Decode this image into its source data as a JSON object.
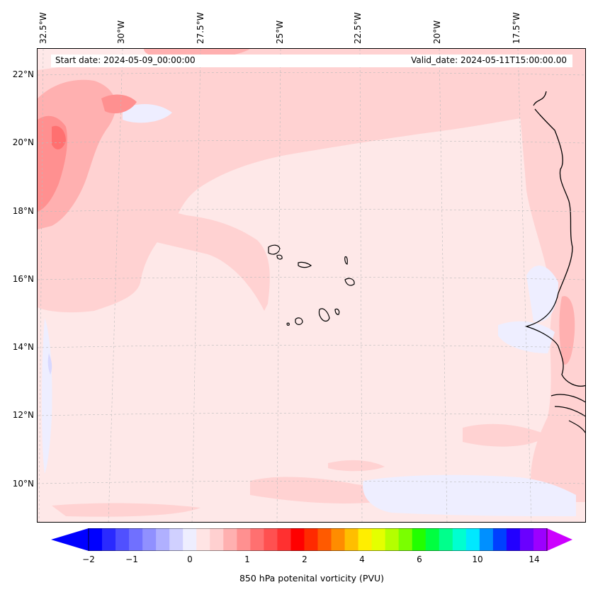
{
  "map": {
    "start_date_text": "Start date: 2024-05-09_00:00:00",
    "valid_date_text": "Valid_date: 2024-05-11T15:00:00.00",
    "longitude_labels": [
      "32.5°W",
      "30°W",
      "27.5°W",
      "25°W",
      "22.5°W",
      "20°W",
      "17.5°W"
    ],
    "latitude_labels": [
      "22°N",
      "20°N",
      "18°N",
      "16°N",
      "14°N",
      "12°N",
      "10°N"
    ],
    "background_color": "#fee8e8",
    "coastline_color": "#000000"
  },
  "colorbar": {
    "label": "850 hPa potenital vorticity (PVU)",
    "tick_labels": [
      "−2",
      "−1",
      "0",
      "1",
      "2",
      "4",
      "6",
      "10",
      "14"
    ],
    "colors": [
      "#0000ff",
      "#2a2aff",
      "#5050ff",
      "#7070ff",
      "#9090ff",
      "#b0b0ff",
      "#d0d0ff",
      "#eeeeff",
      "#ffe4e4",
      "#ffd0d0",
      "#ffb0b0",
      "#ff9090",
      "#ff7070",
      "#ff5050",
      "#ff3030",
      "#ff0000",
      "#ff2a00",
      "#ff5a00",
      "#ff8c00",
      "#ffbe00",
      "#ffee00",
      "#e4ff00",
      "#b4ff00",
      "#7aff00",
      "#22ff00",
      "#00ff40",
      "#00ff8c",
      "#00ffd0",
      "#00e8ff",
      "#0090ff",
      "#0040ff",
      "#2200ff",
      "#6a00ff",
      "#9c00ff"
    ],
    "extend_low_color": "#0000ff",
    "extend_high_color": "#cc00ff"
  }
}
